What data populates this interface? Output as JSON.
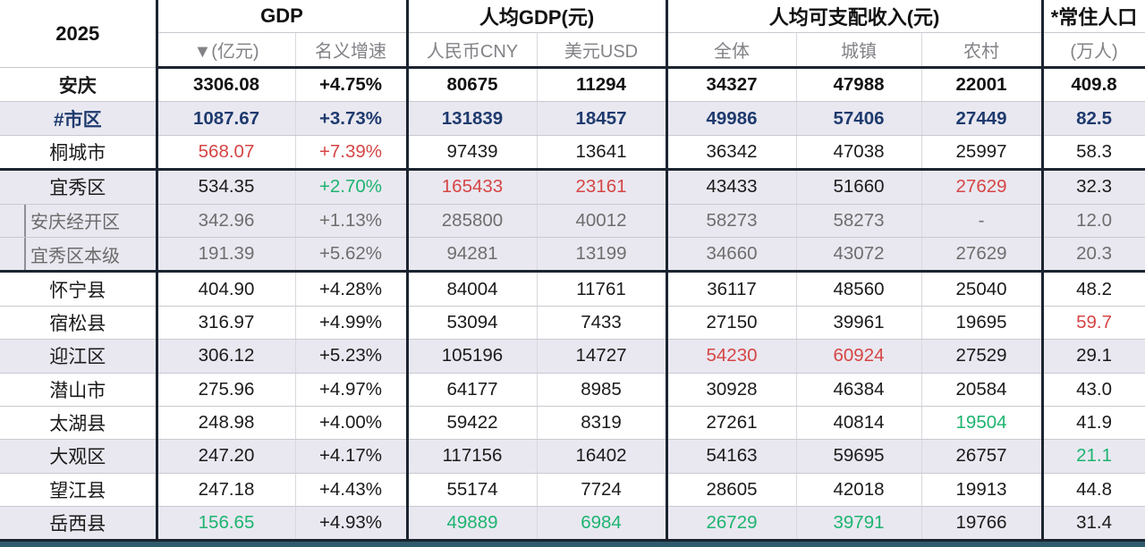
{
  "year": "2025",
  "header": {
    "groups": [
      "GDP",
      "人均GDP(元)",
      "人均可支配收入(元)",
      "*常住人口"
    ],
    "sub": [
      "▼(亿元)",
      "名义增速",
      "人民币CNY",
      "美元USD",
      "全体",
      "城镇",
      "农村",
      "(万人)"
    ]
  },
  "colors": {
    "red": "#d64545",
    "green": "#1db470",
    "navy": "#1e3a6e",
    "zebra_bg": "#e9e8f0",
    "thick_border": "#1c2430",
    "bottom_bar": "#2e5a6b"
  },
  "rows": [
    {
      "label": "安庆",
      "kind": "total",
      "zebra": false,
      "sub": false,
      "tb": false,
      "cells": [
        "3306.08",
        "+4.75%",
        "80675",
        "11294",
        "34327",
        "47988",
        "22001",
        "409.8"
      ],
      "styles": [
        "b",
        "b",
        "b",
        "b",
        "b",
        "b",
        "b",
        "b"
      ]
    },
    {
      "label": "#市区",
      "kind": "subtotal",
      "zebra": true,
      "sub": false,
      "tb": false,
      "cells": [
        "1087.67",
        "+3.73%",
        "131839",
        "18457",
        "49986",
        "57406",
        "27449",
        "82.5"
      ],
      "styles": [
        "n",
        "n",
        "n",
        "n",
        "n",
        "n",
        "n",
        "n"
      ]
    },
    {
      "label": "桐城市",
      "kind": "normal",
      "zebra": false,
      "sub": false,
      "tb": true,
      "cells": [
        "568.07",
        "+7.39%",
        "97439",
        "13641",
        "36342",
        "47038",
        "25997",
        "58.3"
      ],
      "styles": [
        "r",
        "r",
        "d",
        "d",
        "d",
        "d",
        "d",
        "d"
      ]
    },
    {
      "label": "宜秀区",
      "kind": "normal",
      "zebra": true,
      "sub": false,
      "tb": false,
      "cells": [
        "534.35",
        "+2.70%",
        "165433",
        "23161",
        "43433",
        "51660",
        "27629",
        "32.3"
      ],
      "styles": [
        "d",
        "g",
        "r",
        "r",
        "d",
        "d",
        "r",
        "d"
      ]
    },
    {
      "label": "安庆经开区",
      "kind": "normal",
      "zebra": true,
      "sub": true,
      "tb": false,
      "cells": [
        "342.96",
        "+1.13%",
        "285800",
        "40012",
        "58273",
        "58273",
        "-",
        "12.0"
      ],
      "styles": [
        "y",
        "y",
        "y",
        "y",
        "y",
        "y",
        "y",
        "y"
      ]
    },
    {
      "label": "宜秀区本级",
      "kind": "normal",
      "zebra": true,
      "sub": true,
      "tb": true,
      "cells": [
        "191.39",
        "+5.62%",
        "94281",
        "13199",
        "34660",
        "43072",
        "27629",
        "20.3"
      ],
      "styles": [
        "y",
        "y",
        "y",
        "y",
        "y",
        "y",
        "y",
        "y"
      ]
    },
    {
      "label": "怀宁县",
      "kind": "normal",
      "zebra": false,
      "sub": false,
      "tb": false,
      "cells": [
        "404.90",
        "+4.28%",
        "84004",
        "11761",
        "36117",
        "48560",
        "25040",
        "48.2"
      ],
      "styles": [
        "d",
        "d",
        "d",
        "d",
        "d",
        "d",
        "d",
        "d"
      ]
    },
    {
      "label": "宿松县",
      "kind": "normal",
      "zebra": false,
      "sub": false,
      "tb": false,
      "cells": [
        "316.97",
        "+4.99%",
        "53094",
        "7433",
        "27150",
        "39961",
        "19695",
        "59.7"
      ],
      "styles": [
        "d",
        "d",
        "d",
        "d",
        "d",
        "d",
        "d",
        "r"
      ]
    },
    {
      "label": "迎江区",
      "kind": "normal",
      "zebra": true,
      "sub": false,
      "tb": false,
      "cells": [
        "306.12",
        "+5.23%",
        "105196",
        "14727",
        "54230",
        "60924",
        "27529",
        "29.1"
      ],
      "styles": [
        "d",
        "d",
        "d",
        "d",
        "r",
        "r",
        "d",
        "d"
      ]
    },
    {
      "label": "潜山市",
      "kind": "normal",
      "zebra": false,
      "sub": false,
      "tb": false,
      "cells": [
        "275.96",
        "+4.97%",
        "64177",
        "8985",
        "30928",
        "46384",
        "20584",
        "43.0"
      ],
      "styles": [
        "d",
        "d",
        "d",
        "d",
        "d",
        "d",
        "d",
        "d"
      ]
    },
    {
      "label": "太湖县",
      "kind": "normal",
      "zebra": false,
      "sub": false,
      "tb": false,
      "cells": [
        "248.98",
        "+4.00%",
        "59422",
        "8319",
        "27261",
        "40814",
        "19504",
        "41.9"
      ],
      "styles": [
        "d",
        "d",
        "d",
        "d",
        "d",
        "d",
        "g",
        "d"
      ]
    },
    {
      "label": "大观区",
      "kind": "normal",
      "zebra": true,
      "sub": false,
      "tb": false,
      "cells": [
        "247.20",
        "+4.17%",
        "117156",
        "16402",
        "54163",
        "59695",
        "26757",
        "21.1"
      ],
      "styles": [
        "d",
        "d",
        "d",
        "d",
        "d",
        "d",
        "d",
        "g"
      ]
    },
    {
      "label": "望江县",
      "kind": "normal",
      "zebra": false,
      "sub": false,
      "tb": false,
      "cells": [
        "247.18",
        "+4.43%",
        "55174",
        "7724",
        "28605",
        "42018",
        "19913",
        "44.8"
      ],
      "styles": [
        "d",
        "d",
        "d",
        "d",
        "d",
        "d",
        "d",
        "d"
      ]
    },
    {
      "label": "岳西县",
      "kind": "normal",
      "zebra": true,
      "sub": false,
      "tb": true,
      "cells": [
        "156.65",
        "+4.93%",
        "49889",
        "6984",
        "26729",
        "39791",
        "19766",
        "31.4"
      ],
      "styles": [
        "g",
        "d",
        "g",
        "g",
        "g",
        "g",
        "d",
        "d"
      ]
    }
  ],
  "chart_data": {
    "type": "table",
    "title": "2025",
    "columns": [
      "2025",
      "GDP ▼(亿元)",
      "GDP 名义增速",
      "人均GDP 人民币CNY(元)",
      "人均GDP 美元USD(元)",
      "人均可支配收入 全体(元)",
      "人均可支配收入 城镇(元)",
      "人均可支配收入 农村(元)",
      "*常住人口(万人)"
    ],
    "rows": [
      [
        "安庆",
        3306.08,
        "+4.75%",
        80675,
        11294,
        34327,
        47988,
        22001,
        409.8
      ],
      [
        "#市区",
        1087.67,
        "+3.73%",
        131839,
        18457,
        49986,
        57406,
        27449,
        82.5
      ],
      [
        "桐城市",
        568.07,
        "+7.39%",
        97439,
        13641,
        36342,
        47038,
        25997,
        58.3
      ],
      [
        "宜秀区",
        534.35,
        "+2.70%",
        165433,
        23161,
        43433,
        51660,
        27629,
        32.3
      ],
      [
        "安庆经开区",
        342.96,
        "+1.13%",
        285800,
        40012,
        58273,
        58273,
        "-",
        12.0
      ],
      [
        "宜秀区本级",
        191.39,
        "+5.62%",
        94281,
        13199,
        34660,
        43072,
        27629,
        20.3
      ],
      [
        "怀宁县",
        404.9,
        "+4.28%",
        84004,
        11761,
        36117,
        48560,
        25040,
        48.2
      ],
      [
        "宿松县",
        316.97,
        "+4.99%",
        53094,
        7433,
        27150,
        39961,
        19695,
        59.7
      ],
      [
        "迎江区",
        306.12,
        "+5.23%",
        105196,
        14727,
        54230,
        60924,
        27529,
        29.1
      ],
      [
        "潜山市",
        275.96,
        "+4.97%",
        64177,
        8985,
        30928,
        46384,
        20584,
        43.0
      ],
      [
        "太湖县",
        248.98,
        "+4.00%",
        59422,
        8319,
        27261,
        40814,
        19504,
        41.9
      ],
      [
        "大观区",
        247.2,
        "+4.17%",
        117156,
        16402,
        54163,
        59695,
        26757,
        21.1
      ],
      [
        "望江县",
        247.18,
        "+4.43%",
        55174,
        7724,
        28605,
        42018,
        19913,
        44.8
      ],
      [
        "岳西县",
        156.65,
        "+4.93%",
        49889,
        6984,
        26729,
        39791,
        19766,
        31.4
      ]
    ]
  }
}
